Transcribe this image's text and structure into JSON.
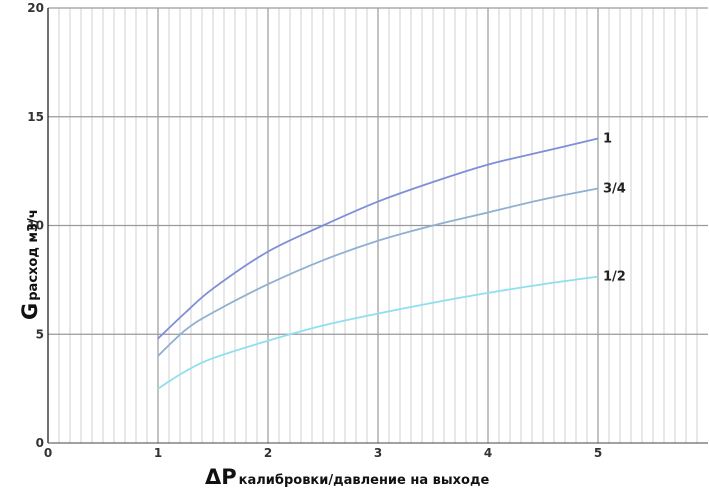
{
  "chart_data": {
    "type": "line",
    "xlabel_symbol": "ΔP",
    "xlabel_sub": "калибровки/давление на выходе",
    "ylabel_symbol": "G",
    "ylabel_sub": "расход м3/ч",
    "xlim": [
      0,
      6
    ],
    "ylim": [
      0,
      20
    ],
    "x_ticks": [
      "0",
      "1",
      "2",
      "3",
      "4",
      "5"
    ],
    "y_ticks": [
      "0",
      "5",
      "10",
      "15",
      "20"
    ],
    "grid": true,
    "minor_grid_x": true,
    "series": [
      {
        "name": "1",
        "color": "#7e8fd8",
        "x": [
          1,
          1.25,
          1.5,
          2,
          2.5,
          3,
          3.5,
          4,
          4.5,
          5
        ],
        "y": [
          4.8,
          6.0,
          7.1,
          8.8,
          10.0,
          11.1,
          12.0,
          12.8,
          13.4,
          14.0
        ]
      },
      {
        "name": "3/4",
        "color": "#8fb0d0",
        "x": [
          1,
          1.25,
          1.5,
          2,
          2.5,
          3,
          3.5,
          4,
          4.5,
          5
        ],
        "y": [
          4.0,
          5.2,
          6.0,
          7.3,
          8.4,
          9.3,
          10.0,
          10.6,
          11.2,
          11.7
        ]
      },
      {
        "name": "1/2",
        "color": "#8fe0ee",
        "x": [
          1,
          1.25,
          1.5,
          2,
          2.5,
          3,
          3.5,
          4,
          4.5,
          5
        ],
        "y": [
          2.5,
          3.3,
          3.9,
          4.7,
          5.4,
          5.95,
          6.45,
          6.9,
          7.3,
          7.65
        ]
      }
    ]
  }
}
